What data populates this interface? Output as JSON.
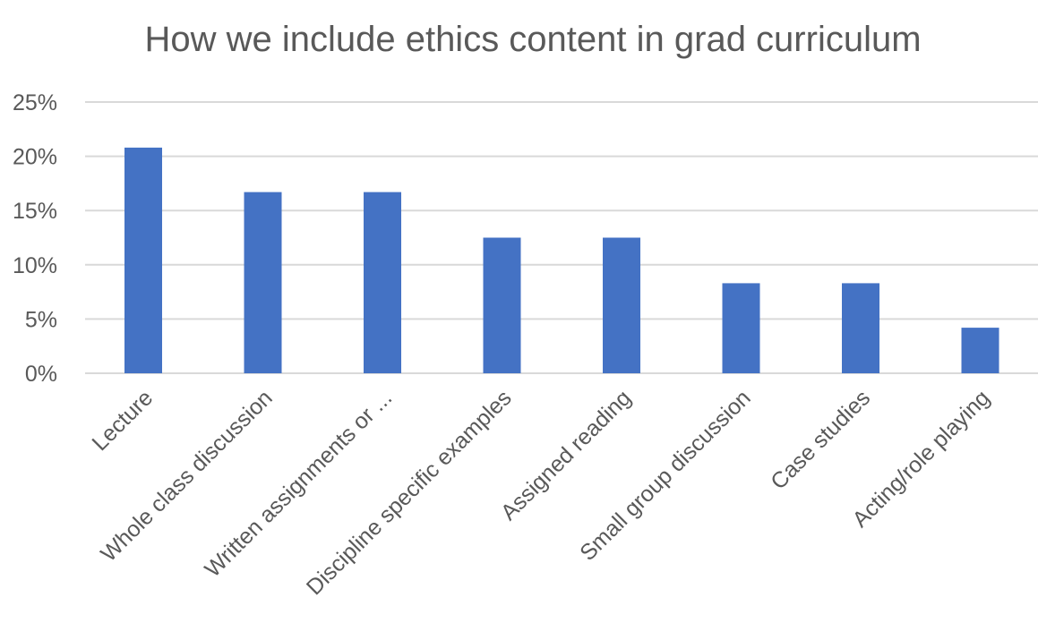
{
  "chart_data": {
    "type": "bar",
    "title": "How we include ethics content in grad curriculum",
    "categories": [
      "Lecture",
      "Whole class discussion",
      "Written assignments or ...",
      "Discipline specific examples",
      "Assigned reading",
      "Small group discussion",
      "Case studies",
      "Acting/role playing"
    ],
    "values": [
      20.8,
      16.7,
      16.7,
      12.5,
      12.5,
      8.3,
      8.3,
      4.2
    ],
    "ylim": [
      0,
      25
    ],
    "yticks": [
      0,
      5,
      10,
      15,
      20,
      25
    ],
    "ytick_labels": [
      "0%",
      "5%",
      "10%",
      "15%",
      "20%",
      "25%"
    ],
    "xlabel": "",
    "ylabel": "",
    "grid": true,
    "legend": "none",
    "colors": {
      "bar": "#4472C4",
      "grid": "#D9D9D9",
      "text": "#595959"
    }
  }
}
